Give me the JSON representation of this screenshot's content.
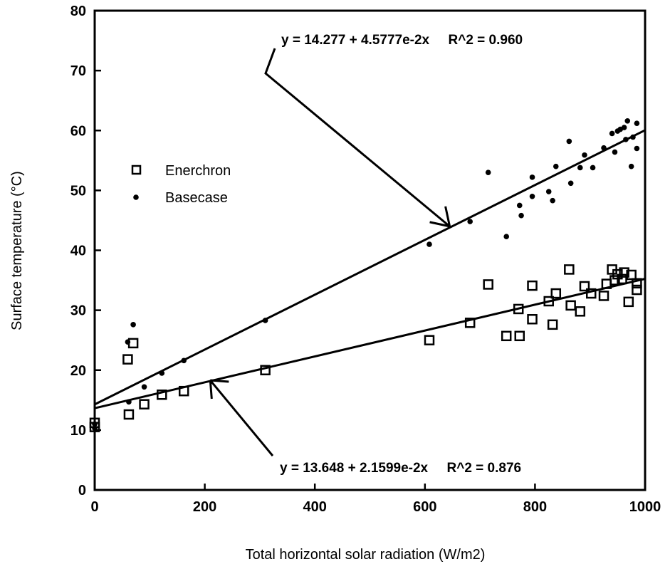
{
  "chart_data": {
    "type": "scatter",
    "xlabel": "Total horizontal solar radiation (W/m2)",
    "ylabel": "Surface temperature (°C)",
    "xlim": [
      0,
      1000
    ],
    "ylim": [
      0,
      80
    ],
    "x_ticks": [
      "0",
      "200",
      "400",
      "600",
      "800",
      "1000"
    ],
    "y_ticks": [
      "0",
      "10",
      "20",
      "30",
      "40",
      "50",
      "60",
      "70",
      "80"
    ],
    "grid": false,
    "legend_position": "left",
    "series": [
      {
        "name": "Enerchron",
        "marker": "open-square",
        "points": [
          [
            0,
            10.5
          ],
          [
            0,
            11.2
          ],
          [
            60,
            21.8
          ],
          [
            62,
            12.6
          ],
          [
            70,
            24.5
          ],
          [
            90,
            14.3
          ],
          [
            122,
            15.9
          ],
          [
            162,
            16.5
          ],
          [
            310,
            20
          ],
          [
            608,
            25
          ],
          [
            682,
            27.9
          ],
          [
            715,
            34.3
          ],
          [
            748,
            25.7
          ],
          [
            772,
            25.7
          ],
          [
            770,
            30.2
          ],
          [
            795,
            34.1
          ],
          [
            795,
            28.5
          ],
          [
            825,
            31.5
          ],
          [
            832,
            27.6
          ],
          [
            838,
            32.8
          ],
          [
            862,
            36.8
          ],
          [
            865,
            30.8
          ],
          [
            882,
            29.8
          ],
          [
            890,
            34
          ],
          [
            902,
            32.8
          ],
          [
            925,
            32.4
          ],
          [
            930,
            34.4
          ],
          [
            940,
            36.8
          ],
          [
            945,
            35
          ],
          [
            950,
            36
          ],
          [
            958,
            35.2
          ],
          [
            962,
            36.3
          ],
          [
            970,
            31.4
          ],
          [
            975,
            35.9
          ],
          [
            985,
            33.4
          ],
          [
            985,
            34.5
          ]
        ]
      },
      {
        "name": "Basecase",
        "marker": "filled-dot",
        "points": [
          [
            0,
            10.3
          ],
          [
            0,
            11
          ],
          [
            60,
            24.7
          ],
          [
            62,
            14.7
          ],
          [
            70,
            27.6
          ],
          [
            90,
            17.2
          ],
          [
            122,
            19.5
          ],
          [
            162,
            21.6
          ],
          [
            310,
            28.3
          ],
          [
            608,
            41
          ],
          [
            682,
            44.8
          ],
          [
            715,
            53
          ],
          [
            748,
            42.3
          ],
          [
            772,
            47.5
          ],
          [
            775,
            45.8
          ],
          [
            795,
            49
          ],
          [
            795,
            52.2
          ],
          [
            825,
            49.8
          ],
          [
            832,
            48.3
          ],
          [
            838,
            54
          ],
          [
            862,
            58.2
          ],
          [
            865,
            51.2
          ],
          [
            882,
            53.8
          ],
          [
            890,
            55.9
          ],
          [
            905,
            53.8
          ],
          [
            925,
            57.1
          ],
          [
            940,
            59.5
          ],
          [
            945,
            56.4
          ],
          [
            950,
            59.9
          ],
          [
            955,
            60.2
          ],
          [
            962,
            60.5
          ],
          [
            965,
            58.5
          ],
          [
            968,
            61.6
          ],
          [
            975,
            54
          ],
          [
            978,
            58.9
          ],
          [
            985,
            61.2
          ],
          [
            985,
            57
          ]
        ]
      }
    ],
    "fits": [
      {
        "series": "Basecase",
        "intercept": 14.277,
        "slope": 0.045777,
        "label": "y = 14.277 + 4.5777e-2x     R^2 = 0.960"
      },
      {
        "series": "Enerchron",
        "intercept": 13.648,
        "slope": 0.021599,
        "label": "y = 13.648 + 2.1599e-2x     R^2 = 0.876"
      }
    ],
    "annotations": [
      {
        "text": "y = 14.277 + 4.5777e-2x     R^2 = 0.960",
        "points_to": [
          645,
          44
        ]
      },
      {
        "text": "y = 13.648 + 2.1599e-2x     R^2 = 0.876",
        "points_to": [
          210,
          18.3
        ]
      }
    ]
  }
}
